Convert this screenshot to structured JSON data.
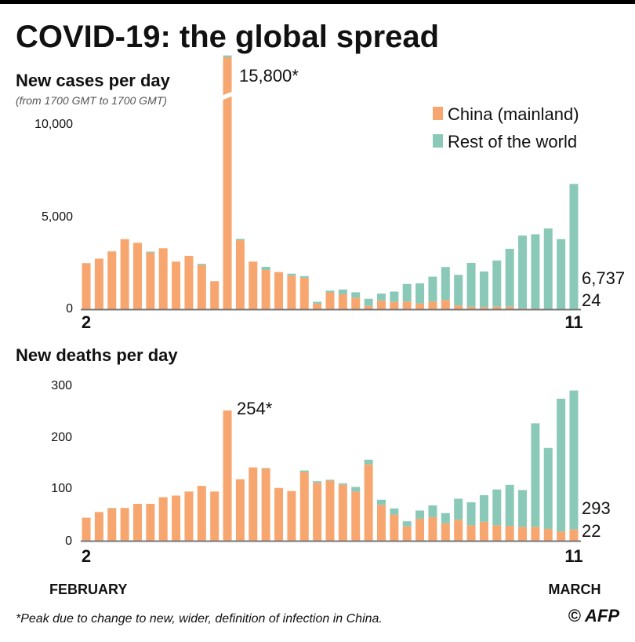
{
  "title": "COVID-19: the global spread",
  "colors": {
    "china": "#f8a66f",
    "rest": "#8ac9b8",
    "axis": "#777777"
  },
  "legend": [
    "China (mainland)",
    "Rest of the world"
  ],
  "month_labels": {
    "start": "FEBRUARY",
    "end": "MARCH"
  },
  "footnote": "*Peak due to change to new, wider, definition of infection in China.",
  "credit": "© AFP",
  "chart_data": [
    {
      "type": "bar",
      "stacked": true,
      "title": "New cases per day",
      "subtitle": "(from 1700 GMT to 1700 GMT)",
      "x_tick_labels": [
        "2",
        "11"
      ],
      "y_ticks": [
        0,
        5000,
        10000
      ],
      "y_tick_labels": [
        "0",
        "5,000",
        "10,000"
      ],
      "ylim": [
        0,
        10000
      ],
      "axis_break": true,
      "annotations": {
        "peak": "15,800*",
        "last_total": "6,737",
        "last_china": "24"
      },
      "x": [
        "Feb 2",
        "Feb 3",
        "Feb 4",
        "Feb 5",
        "Feb 6",
        "Feb 7",
        "Feb 8",
        "Feb 9",
        "Feb 10",
        "Feb 11",
        "Feb 12",
        "Feb 13",
        "Feb 14",
        "Feb 15",
        "Feb 16",
        "Feb 17",
        "Feb 18",
        "Feb 19",
        "Feb 20",
        "Feb 21",
        "Feb 22",
        "Feb 23",
        "Feb 24",
        "Feb 25",
        "Feb 26",
        "Feb 27",
        "Feb 28",
        "Feb 29",
        "Mar 1",
        "Mar 2",
        "Mar 3",
        "Mar 4",
        "Mar 5",
        "Mar 6",
        "Mar 7",
        "Mar 8",
        "Mar 9",
        "Mar 10",
        "Mar 11"
      ],
      "series": [
        {
          "name": "China (mainland)",
          "values": [
            2480,
            2720,
            3110,
            3770,
            3570,
            3040,
            3280,
            2560,
            2870,
            2370,
            1500,
            15700,
            3710,
            2560,
            2110,
            2000,
            1800,
            1690,
            300,
            910,
            800,
            620,
            180,
            470,
            390,
            410,
            310,
            410,
            500,
            200,
            130,
            120,
            140,
            140,
            50,
            40,
            20,
            20,
            24
          ]
        },
        {
          "name": "Rest of the world",
          "values": [
            0,
            0,
            0,
            0,
            0,
            60,
            0,
            0,
            0,
            70,
            10,
            100,
            70,
            0,
            170,
            0,
            110,
            90,
            100,
            90,
            260,
            290,
            380,
            370,
            560,
            950,
            1080,
            1340,
            1770,
            1650,
            2360,
            1910,
            2480,
            3110,
            3910,
            3990,
            4320,
            3750,
            6713
          ]
        }
      ]
    },
    {
      "type": "bar",
      "stacked": true,
      "title": "New deaths per day",
      "x_tick_labels": [
        "2",
        "11"
      ],
      "y_ticks": [
        0,
        100,
        200,
        300
      ],
      "y_tick_labels": [
        "0",
        "100",
        "200",
        "300"
      ],
      "ylim": [
        0,
        300
      ],
      "annotations": {
        "peak": "254*",
        "last_total": "293",
        "last_china": "22"
      },
      "x": [
        "Feb 2",
        "Feb 3",
        "Feb 4",
        "Feb 5",
        "Feb 6",
        "Feb 7",
        "Feb 8",
        "Feb 9",
        "Feb 10",
        "Feb 11",
        "Feb 12",
        "Feb 13",
        "Feb 14",
        "Feb 15",
        "Feb 16",
        "Feb 17",
        "Feb 18",
        "Feb 19",
        "Feb 20",
        "Feb 21",
        "Feb 22",
        "Feb 23",
        "Feb 24",
        "Feb 25",
        "Feb 26",
        "Feb 27",
        "Feb 28",
        "Feb 29",
        "Mar 1",
        "Mar 2",
        "Mar 3",
        "Mar 4",
        "Mar 5",
        "Mar 6",
        "Mar 7",
        "Mar 8",
        "Mar 9",
        "Mar 10",
        "Mar 11"
      ],
      "series": [
        {
          "name": "China (mainland)",
          "values": [
            45,
            56,
            63,
            64,
            72,
            72,
            85,
            88,
            96,
            107,
            96,
            254,
            120,
            143,
            141,
            103,
            97,
            134,
            113,
            117,
            109,
            96,
            149,
            70,
            51,
            28,
            43,
            46,
            34,
            41,
            30,
            37,
            30,
            29,
            27,
            27,
            23,
            18,
            22
          ]
        },
        {
          "name": "Rest of the world",
          "values": [
            0,
            0,
            1,
            0,
            0,
            0,
            0,
            0,
            0,
            0,
            0,
            0,
            0,
            0,
            1,
            0,
            0,
            3,
            3,
            2,
            3,
            9,
            9,
            10,
            12,
            10,
            16,
            23,
            20,
            41,
            45,
            52,
            70,
            80,
            72,
            202,
            158,
            259,
            271
          ]
        }
      ]
    }
  ]
}
